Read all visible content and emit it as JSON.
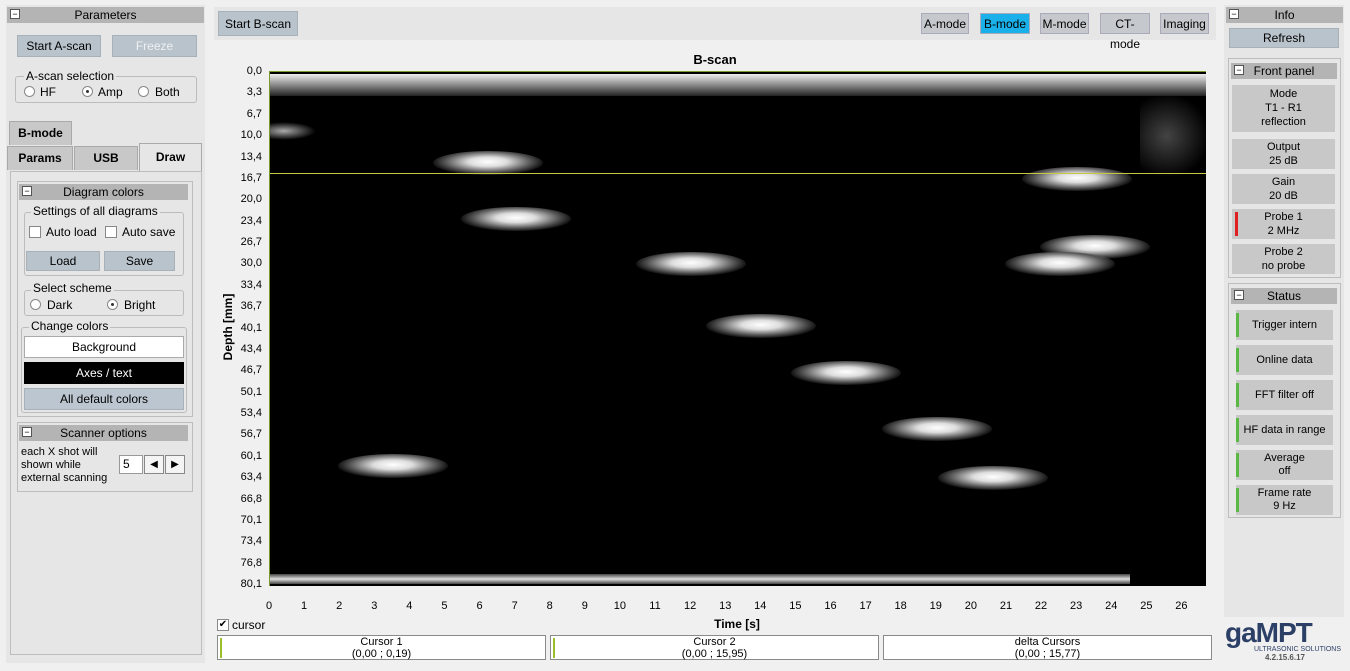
{
  "parameters": {
    "title": "Parameters",
    "start_ascan": "Start A-scan",
    "freeze": "Freeze",
    "ascan_selection": "A-scan selection",
    "radio_hf": "HF",
    "radio_amp": "Amp",
    "radio_both": "Both",
    "selected": "Amp"
  },
  "tabs": {
    "bmode": "B-mode",
    "params": "Params",
    "usb": "USB",
    "draw": "Draw",
    "active": "Draw"
  },
  "diagram_colors": {
    "title": "Diagram colors",
    "settings_label": "Settings of all diagrams",
    "auto_load": "Auto load",
    "auto_save": "Auto save",
    "load": "Load",
    "save": "Save",
    "scheme_label": "Select scheme",
    "dark": "Dark",
    "bright": "Bright",
    "selected_scheme": "Bright",
    "change_colors": "Change colors",
    "background": "Background",
    "axes_text": "Axes / text",
    "all_default": "All default colors"
  },
  "scanner_options": {
    "title": "Scanner options",
    "text_line1": "each X shot will",
    "text_line2": "shown while",
    "text_line3": "external scanning",
    "value": "5"
  },
  "toolbar": {
    "start_bscan": "Start B-scan",
    "modes": [
      "A-mode",
      "B-mode",
      "M-mode",
      "CT-mode",
      "Imaging"
    ],
    "active_mode": "B-mode"
  },
  "chart_data": {
    "type": "heatmap",
    "title": "B-scan",
    "xlabel": "Time [s]",
    "ylabel": "Depth [mm]",
    "xlim": [
      0,
      26.7
    ],
    "ylim": [
      80.1,
      0.0
    ],
    "x_ticks": [
      "0",
      "1",
      "2",
      "3",
      "4",
      "5",
      "6",
      "7",
      "8",
      "9",
      "10",
      "11",
      "12",
      "13",
      "14",
      "15",
      "16",
      "17",
      "18",
      "19",
      "20",
      "21",
      "22",
      "23",
      "24",
      "25",
      "26"
    ],
    "y_ticks": [
      "0,0",
      "3,3",
      "6,7",
      "10,0",
      "13,4",
      "16,7",
      "20,0",
      "23,4",
      "26,7",
      "30,0",
      "33,4",
      "36,7",
      "40,1",
      "43,4",
      "46,7",
      "50,1",
      "53,4",
      "56,7",
      "60,1",
      "63,4",
      "66,8",
      "70,1",
      "73,4",
      "76,8",
      "80,1"
    ],
    "cursor1_depth": 0.19,
    "cursor2_depth": 15.95,
    "reflections": [
      {
        "time": 6.2,
        "depth": 14.2
      },
      {
        "time": 23.0,
        "depth": 16.7
      },
      {
        "time": 7.0,
        "depth": 23.0
      },
      {
        "time": 12.0,
        "depth": 30.0
      },
      {
        "time": 14.0,
        "depth": 39.6
      },
      {
        "time": 16.4,
        "depth": 47.0
      },
      {
        "time": 19.0,
        "depth": 55.7
      },
      {
        "time": 3.5,
        "depth": 61.5
      },
      {
        "time": 20.6,
        "depth": 63.4
      },
      {
        "time": 23.5,
        "depth": 27.3
      },
      {
        "time": 22.5,
        "depth": 30.0
      }
    ],
    "colors": {
      "background": "#000000",
      "axes": "#000000",
      "cursor": "#c8c840",
      "frame": "#88a040"
    }
  },
  "cursor_checkbox": "cursor",
  "cursors": {
    "c1_label": "Cursor 1",
    "c1_value": "(0,00 ; 0,19)",
    "c2_label": "Cursor 2",
    "c2_value": "(0,00 ; 15,95)",
    "delta_label": "delta Cursors",
    "delta_value": "(0,00 ; 15,77)"
  },
  "info": {
    "title": "Info",
    "refresh": "Refresh",
    "front_panel": "Front panel",
    "mode_l1": "Mode",
    "mode_l2": "T1 - R1",
    "mode_l3": "reflection",
    "output_l1": "Output",
    "output_l2": "25 dB",
    "gain_l1": "Gain",
    "gain_l2": "20 dB",
    "probe1_l1": "Probe 1",
    "probe1_l2": "2 MHz",
    "probe2_l1": "Probe 2",
    "probe2_l2": "no probe"
  },
  "status": {
    "title": "Status",
    "trigger": "Trigger intern",
    "online": "Online data",
    "fft": "FFT filter off",
    "hf": "HF data in range",
    "avg_l1": "Average",
    "avg_l2": "off",
    "fr_l1": "Frame rate",
    "fr_l2": "9 Hz"
  },
  "brand": {
    "logo": "gaMPT",
    "sub": "ULTRASONIC SOLUTIONS",
    "version": "4.2.15.6.17"
  }
}
